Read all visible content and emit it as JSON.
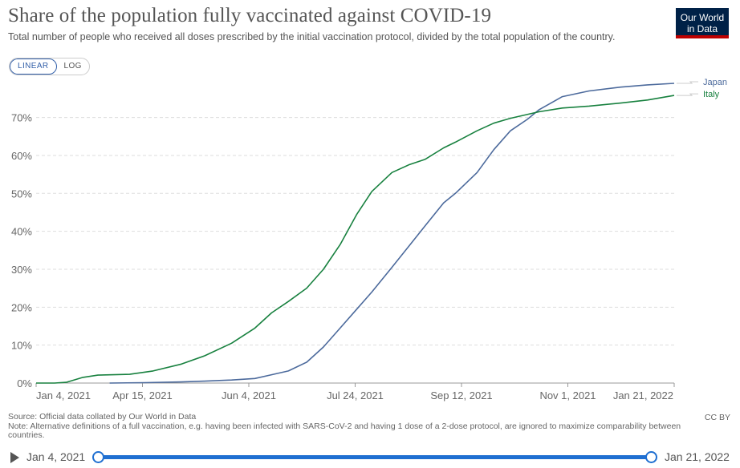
{
  "header": {
    "title": "Share of the population fully vaccinated against COVID-19",
    "subtitle": "Total number of people who received all doses prescribed by the initial vaccination protocol, divided by the total population of the country.",
    "logo_line1": "Our World",
    "logo_line2": "in Data"
  },
  "scale_toggle": {
    "linear_label": "LINEAR",
    "log_label": "LOG",
    "selected": "LINEAR"
  },
  "footer": {
    "source": "Source: Official data collated by Our World in Data",
    "note": "Note: Alternative definitions of a full vaccination, e.g. having been infected with SARS-CoV-2 and having 1 dose of a 2-dose protocol, are ignored to maximize comparability between countries.",
    "license": "CC BY"
  },
  "timeline": {
    "start_label": "Jan 4, 2021",
    "end_label": "Jan 21, 2022"
  },
  "colors": {
    "japan": "#4c6a9c",
    "italy": "#18813f",
    "accent": "#1f6fd1"
  },
  "chart_data": {
    "type": "line",
    "title": "Share of the population fully vaccinated against COVID-19",
    "xlabel": "",
    "ylabel": "",
    "x_ticks": [
      "Jan 4, 2021",
      "Apr 15, 2021",
      "Jun 4, 2021",
      "Jul 24, 2021",
      "Sep 12, 2021",
      "Nov 1, 2021",
      "Jan 21, 2022"
    ],
    "y_ticks": [
      "0%",
      "10%",
      "20%",
      "30%",
      "40%",
      "50%",
      "60%",
      "70%"
    ],
    "ylim": [
      0,
      79
    ],
    "x_range": [
      "2021-01-04",
      "2022-01-21"
    ],
    "grid": "horizontal dashed",
    "legend": "right (line-end labels)",
    "series": [
      {
        "name": "Japan",
        "color": "#4c6a9c",
        "points": [
          [
            "2021-02-17",
            0
          ],
          [
            "2021-03-10",
            0.1
          ],
          [
            "2021-04-01",
            0.3
          ],
          [
            "2021-04-15",
            0.5
          ],
          [
            "2021-05-01",
            0.8
          ],
          [
            "2021-05-15",
            1.2
          ],
          [
            "2021-05-25",
            2.2
          ],
          [
            "2021-06-04",
            3.2
          ],
          [
            "2021-06-15",
            5.5
          ],
          [
            "2021-06-25",
            9.5
          ],
          [
            "2021-07-05",
            14.5
          ],
          [
            "2021-07-15",
            19.5
          ],
          [
            "2021-07-24",
            24
          ],
          [
            "2021-08-05",
            30.5
          ],
          [
            "2021-08-15",
            36
          ],
          [
            "2021-08-25",
            41.5
          ],
          [
            "2021-09-05",
            47.5
          ],
          [
            "2021-09-12",
            50
          ],
          [
            "2021-09-25",
            55.5
          ],
          [
            "2021-10-05",
            61.5
          ],
          [
            "2021-10-15",
            66.5
          ],
          [
            "2021-10-25",
            69.5
          ],
          [
            "2021-11-01",
            72
          ],
          [
            "2021-11-15",
            75.5
          ],
          [
            "2021-12-01",
            77
          ],
          [
            "2021-12-20",
            78
          ],
          [
            "2022-01-05",
            78.6
          ],
          [
            "2022-01-21",
            79
          ]
        ]
      },
      {
        "name": "Italy",
        "color": "#18813f",
        "points": [
          [
            "2021-01-04",
            0
          ],
          [
            "2021-01-15",
            0
          ],
          [
            "2021-01-22",
            0.2
          ],
          [
            "2021-02-01",
            1.5
          ],
          [
            "2021-02-10",
            2.1
          ],
          [
            "2021-03-01",
            2.3
          ],
          [
            "2021-03-15",
            3.2
          ],
          [
            "2021-04-01",
            5
          ],
          [
            "2021-04-15",
            7.2
          ],
          [
            "2021-05-01",
            10.5
          ],
          [
            "2021-05-15",
            14.5
          ],
          [
            "2021-05-25",
            18.5
          ],
          [
            "2021-06-04",
            21.5
          ],
          [
            "2021-06-15",
            25
          ],
          [
            "2021-06-25",
            30
          ],
          [
            "2021-07-05",
            36.5
          ],
          [
            "2021-07-15",
            44.5
          ],
          [
            "2021-07-24",
            50.5
          ],
          [
            "2021-08-05",
            55.5
          ],
          [
            "2021-08-15",
            57.5
          ],
          [
            "2021-08-25",
            59
          ],
          [
            "2021-09-05",
            62
          ],
          [
            "2021-09-12",
            63.5
          ],
          [
            "2021-09-25",
            66.5
          ],
          [
            "2021-10-05",
            68.5
          ],
          [
            "2021-10-15",
            69.8
          ],
          [
            "2021-11-01",
            71.5
          ],
          [
            "2021-11-15",
            72.5
          ],
          [
            "2021-12-01",
            73
          ],
          [
            "2021-12-20",
            73.8
          ],
          [
            "2022-01-05",
            74.6
          ],
          [
            "2022-01-21",
            75.8
          ]
        ]
      }
    ]
  }
}
